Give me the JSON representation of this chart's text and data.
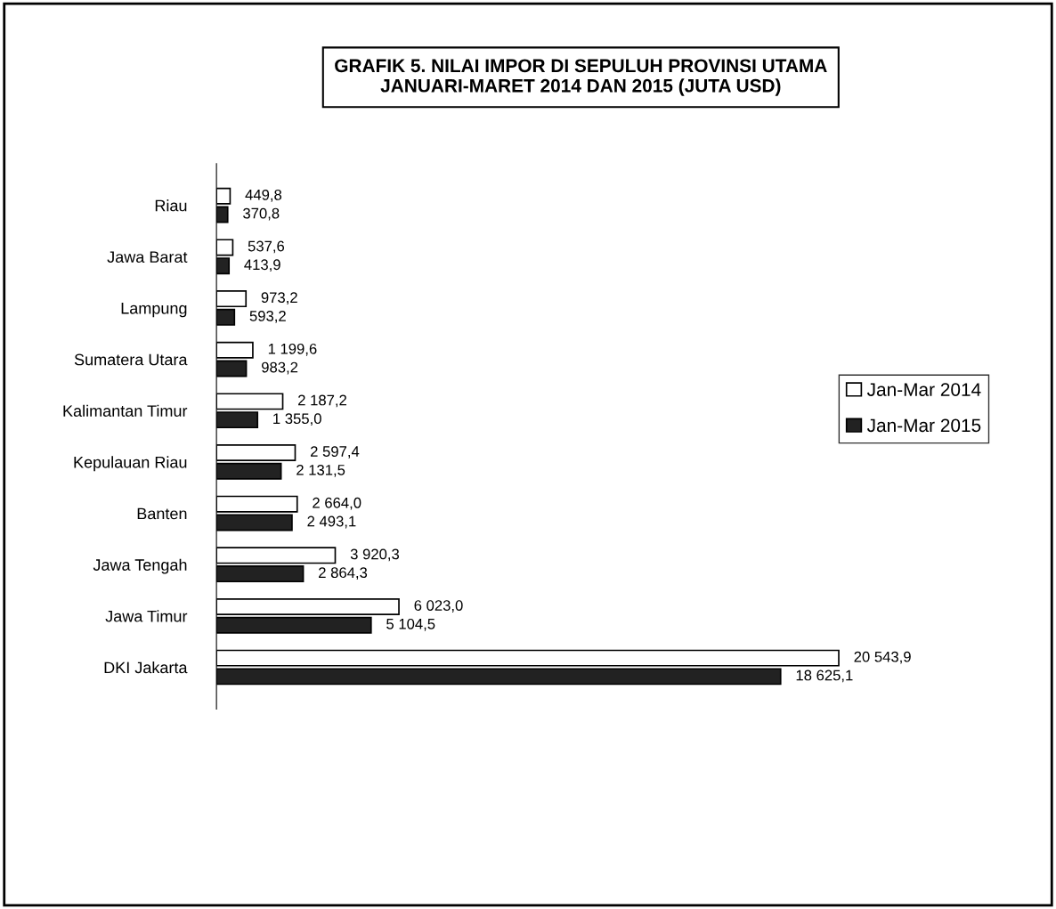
{
  "chart_data": {
    "type": "bar",
    "orientation": "horizontal",
    "title": "GRAFIK 5. NILAI IMPOR DI SEPULUH PROVINSI UTAMA\nJANUARI-MARET 2014 DAN 2015 (JUTA USD)",
    "categories": [
      "Riau",
      "Jawa Barat",
      "Lampung",
      "Sumatera Utara",
      "Kalimantan Timur",
      "Kepulauan Riau",
      "Banten",
      "Jawa Tengah",
      "Jawa Timur",
      "DKI Jakarta"
    ],
    "series": [
      {
        "name": "Jan-Mar 2014",
        "color": "#ffffff",
        "values": [
          449.8,
          537.6,
          973.2,
          1199.6,
          2187.2,
          2597.4,
          2664.0,
          3920.3,
          6023.0,
          20543.9
        ],
        "value_labels": [
          "449,8",
          "537,6",
          "973,2",
          "1 199,6",
          "2 187,2",
          "2 597,4",
          "2 664,0",
          "3 920,3",
          "6 023,0",
          "20 543,9"
        ]
      },
      {
        "name": "Jan-Mar 2015",
        "color": "#222222",
        "values": [
          370.8,
          413.9,
          593.2,
          983.2,
          1355.0,
          2131.5,
          2493.1,
          2864.3,
          5104.5,
          18625.1
        ],
        "value_labels": [
          "370,8",
          "413,9",
          "593,2",
          "983,2",
          "1 355,0",
          "2 131,5",
          "2 493,1",
          "2 864,3",
          "5 104,5",
          "18 625,1"
        ]
      }
    ],
    "legend": "right",
    "grid": false,
    "tick_labels": "y"
  }
}
